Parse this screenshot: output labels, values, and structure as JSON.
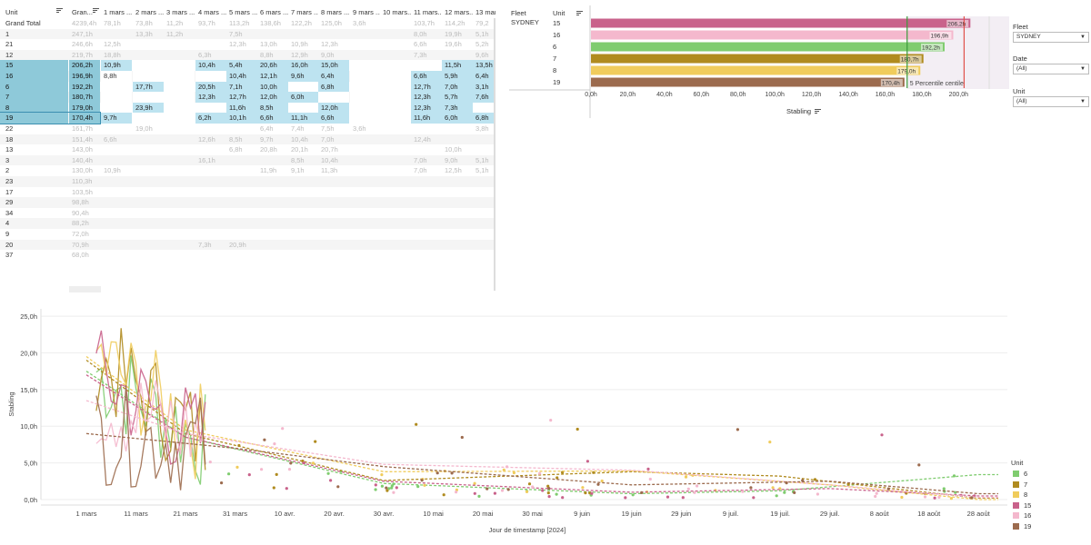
{
  "crosstab": {
    "headers": [
      "Unit",
      "Gran...",
      "1 mars ...",
      "2 mars ...",
      "3 mars ...",
      "4 mars ...",
      "5 mars ...",
      "6 mars ...",
      "7 mars ...",
      "8 mars ...",
      "9 mars ...",
      "10 mars...",
      "11 mars...",
      "12 mars...",
      "13 mar"
    ],
    "rows": [
      {
        "unit": "Grand Total",
        "total": "4239,4h",
        "cells": [
          "78,1h",
          "73,8h",
          "11,2h",
          "93,7h",
          "113,2h",
          "138,6h",
          "122,2h",
          "125,0h",
          "3,6h",
          "",
          "103,7h",
          "114,2h",
          "79,2"
        ],
        "style": "dim"
      },
      {
        "unit": "1",
        "total": "247,1h",
        "cells": [
          "",
          "13,3h",
          "11,2h",
          "",
          "7,5h",
          "",
          "",
          "",
          "",
          "",
          "8,0h",
          "19,9h",
          "5,1h"
        ],
        "style": "dim"
      },
      {
        "unit": "21",
        "total": "246,6h",
        "cells": [
          "12,5h",
          "",
          "",
          "",
          "12,3h",
          "13,0h",
          "10,9h",
          "12,3h",
          "",
          "",
          "6,6h",
          "19,6h",
          "5,2h"
        ],
        "style": "dim"
      },
      {
        "unit": "12",
        "total": "219,7h",
        "cells": [
          "18,8h",
          "",
          "",
          "6,3h",
          "",
          "8,8h",
          "12,9h",
          "9,0h",
          "",
          "",
          "7,3h",
          "",
          "9,6h"
        ],
        "style": "dim"
      },
      {
        "unit": "15",
        "total": "206,2h",
        "cells": [
          "10,9h",
          "",
          "",
          "10,4h",
          "5,4h",
          "20,6h",
          "16,0h",
          "15,0h",
          "",
          "",
          "",
          "11,5h",
          "13,5h"
        ],
        "style": "hl",
        "blank": [
          1,
          2,
          8,
          9,
          10
        ]
      },
      {
        "unit": "16",
        "total": "196,9h",
        "cells": [
          "8,8h",
          "",
          "",
          "",
          "10,4h",
          "12,1h",
          "9,6h",
          "6,4h",
          "",
          "",
          "6,6h",
          "5,9h",
          "6,4h"
        ],
        "style": "hl",
        "blank": [
          0,
          1,
          2,
          3,
          8,
          9
        ]
      },
      {
        "unit": "6",
        "total": "192,2h",
        "cells": [
          "",
          "17,7h",
          "",
          "20,5h",
          "7,1h",
          "10,0h",
          "",
          "6,8h",
          "",
          "",
          "12,7h",
          "7,0h",
          "3,1h"
        ],
        "style": "hl",
        "blank": [
          0,
          2,
          6,
          8,
          9
        ]
      },
      {
        "unit": "7",
        "total": "180,7h",
        "cells": [
          "",
          "",
          "",
          "12,3h",
          "12,7h",
          "12,0h",
          "6,0h",
          "",
          "",
          "",
          "12,3h",
          "5,7h",
          "7,6h"
        ],
        "style": "hl",
        "blank": [
          0,
          1,
          2,
          7,
          8,
          9
        ]
      },
      {
        "unit": "8",
        "total": "179,0h",
        "cells": [
          "",
          "23,9h",
          "",
          "",
          "11,6h",
          "8,5h",
          "",
          "12,0h",
          "",
          "",
          "12,3h",
          "7,3h",
          ""
        ],
        "style": "hl",
        "blank": [
          0,
          2,
          3,
          6,
          8,
          9,
          12
        ]
      },
      {
        "unit": "19",
        "total": "170,4h",
        "cells": [
          "9,7h",
          "",
          "",
          "6,2h",
          "10,1h",
          "6,6h",
          "11,1h",
          "6,6h",
          "",
          "",
          "11,6h",
          "6,0h",
          "6,8h"
        ],
        "style": "hl",
        "blank": [
          1,
          2,
          8,
          9
        ]
      },
      {
        "unit": "22",
        "total": "161,7h",
        "cells": [
          "",
          "19,0h",
          "",
          "",
          "",
          "6,4h",
          "7,4h",
          "7,5h",
          "3,6h",
          "",
          "",
          "",
          "3,8h"
        ],
        "style": "dim"
      },
      {
        "unit": "18",
        "total": "151,4h",
        "cells": [
          "6,6h",
          "",
          "",
          "12,6h",
          "8,5h",
          "9,7h",
          "10,4h",
          "7,0h",
          "",
          "",
          "12,4h",
          "",
          ""
        ],
        "style": "dim"
      },
      {
        "unit": "13",
        "total": "143,0h",
        "cells": [
          "",
          "",
          "",
          "",
          "6,8h",
          "20,8h",
          "20,1h",
          "20,7h",
          "",
          "",
          "",
          "10,0h",
          ""
        ],
        "style": "dim"
      },
      {
        "unit": "3",
        "total": "140,4h",
        "cells": [
          "",
          "",
          "",
          "16,1h",
          "",
          "",
          "8,5h",
          "10,4h",
          "",
          "",
          "7,0h",
          "9,0h",
          "5,1h"
        ],
        "style": "dim"
      },
      {
        "unit": "2",
        "total": "130,0h",
        "cells": [
          "10,9h",
          "",
          "",
          "",
          "",
          "11,9h",
          "9,1h",
          "11,3h",
          "",
          "",
          "7,0h",
          "12,5h",
          "5,1h"
        ],
        "style": "dim"
      },
      {
        "unit": "23",
        "total": "110,3h",
        "cells": [],
        "style": "dim"
      },
      {
        "unit": "17",
        "total": "103,5h",
        "cells": [],
        "style": "dim"
      },
      {
        "unit": "29",
        "total": "98,8h",
        "cells": [],
        "style": "dim"
      },
      {
        "unit": "34",
        "total": "90,4h",
        "cells": [],
        "style": "dim"
      },
      {
        "unit": "4",
        "total": "88,2h",
        "cells": [],
        "style": "dim"
      },
      {
        "unit": "9",
        "total": "72,0h",
        "cells": [],
        "style": "dim"
      },
      {
        "unit": "20",
        "total": "70,9h",
        "cells": [
          "",
          "",
          "",
          "7,3h",
          "20,9h"
        ],
        "style": "dim"
      },
      {
        "unit": "37",
        "total": "68,0h",
        "cells": [],
        "style": "dim"
      }
    ]
  },
  "barchart": {
    "header_fleet": "Fleet",
    "header_unit": "Unit",
    "fleet": "SYDNEY",
    "xlabel": "Stabling",
    "ref_label": "5 Percentile centile",
    "ticks": [
      "0,0h",
      "20,0h",
      "40,0h",
      "60,0h",
      "80,0h",
      "100,0h",
      "120,0h",
      "140,0h",
      "160,0h",
      "180,0h",
      "200,0h"
    ],
    "units": [
      "15",
      "16",
      "6",
      "7",
      "8",
      "19"
    ],
    "values": [
      206.2,
      196.9,
      192.2,
      180.7,
      179.0,
      170.4
    ],
    "value_labels": [
      "206,2h",
      "196,9h",
      "192,2h",
      "180,7h",
      "179,0h",
      "170,4h"
    ],
    "colors": [
      "#c9628b",
      "#f4b8cd",
      "#7fcc6f",
      "#b08b1f",
      "#f0cc5c",
      "#9c6b4e"
    ],
    "ref_green": 172.0,
    "ref_red": 203.0,
    "max": 210
  },
  "filters": {
    "fleet_title": "Fleet",
    "fleet_value": "SYDNEY",
    "date_title": "Date",
    "date_value": "(All)",
    "unit_title": "Unit",
    "unit_value": "(All)"
  },
  "chart_data": {
    "type": "line",
    "ylabel": "Stabling",
    "xlabel": "Jour de timestamp [2024]",
    "yticks": [
      "0,0h",
      "5,0h",
      "10,0h",
      "15,0h",
      "20,0h",
      "25,0h"
    ],
    "ylim": [
      0,
      26
    ],
    "xticks": [
      "1 mars",
      "11 mars",
      "21 mars",
      "31 mars",
      "10 avr.",
      "20 avr.",
      "30 avr.",
      "10 mai",
      "20 mai",
      "30 mai",
      "9 juin",
      "19 juin",
      "29 juin",
      "9 juil.",
      "19 juil.",
      "29 juil.",
      "8 août",
      "18 août",
      "28 août"
    ],
    "legend_title": "Unit",
    "series": [
      {
        "name": "6",
        "color": "#7fcc6f",
        "trend": [
          [
            0,
            17.5
          ],
          [
            20,
            8.5
          ],
          [
            60,
            2.2
          ],
          [
            110,
            0.8
          ],
          [
            140,
            1.2
          ],
          [
            180,
            3.4
          ]
        ]
      },
      {
        "name": "7",
        "color": "#b08b1f",
        "trend": [
          [
            0,
            19.0
          ],
          [
            20,
            9.0
          ],
          [
            60,
            2.6
          ],
          [
            110,
            3.8
          ],
          [
            140,
            3.2
          ],
          [
            180,
            0.2
          ]
        ]
      },
      {
        "name": "8",
        "color": "#f0cc5c",
        "trend": [
          [
            0,
            19.5
          ],
          [
            20,
            9.5
          ],
          [
            60,
            3.8
          ],
          [
            110,
            3.9
          ],
          [
            150,
            2.0
          ],
          [
            180,
            0.0
          ]
        ]
      },
      {
        "name": "15",
        "color": "#c9628b",
        "trend": [
          [
            0,
            17.0
          ],
          [
            20,
            8.5
          ],
          [
            60,
            2.5
          ],
          [
            110,
            1.0
          ],
          [
            150,
            1.5
          ],
          [
            180,
            0.5
          ]
        ]
      },
      {
        "name": "16",
        "color": "#f4b8cd",
        "trend": [
          [
            0,
            13.5
          ],
          [
            20,
            9.0
          ],
          [
            60,
            4.8
          ],
          [
            110,
            4.0
          ],
          [
            150,
            2.0
          ],
          [
            180,
            0.3
          ]
        ]
      },
      {
        "name": "19",
        "color": "#9c6b4e",
        "trend": [
          [
            0,
            9.0
          ],
          [
            30,
            7.0
          ],
          [
            60,
            4.5
          ],
          [
            110,
            2.0
          ],
          [
            150,
            2.5
          ],
          [
            180,
            0.8
          ]
        ]
      }
    ]
  }
}
